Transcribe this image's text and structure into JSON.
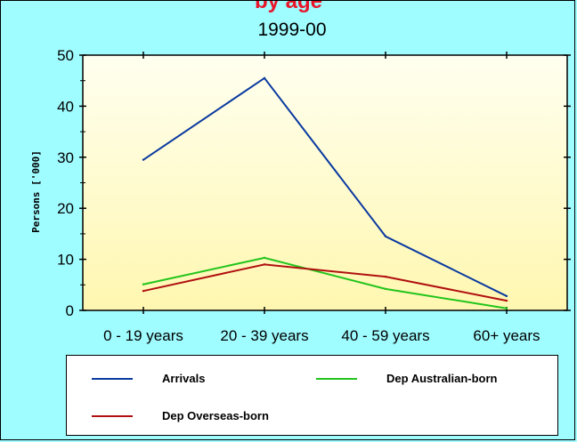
{
  "chart_data": {
    "type": "line",
    "title": "by age",
    "subtitle": "1999-00",
    "xlabel": "",
    "ylabel": "Persons ['000]",
    "categories": [
      "0 - 19 years",
      "20 - 39 years",
      "40 - 59 years",
      "60+ years"
    ],
    "ylim": [
      0,
      50
    ],
    "yticks": [
      0,
      10,
      20,
      30,
      40,
      50
    ],
    "grid": false,
    "legend_position": "bottom",
    "plot_background": [
      "#fffff0",
      "#fff7b0"
    ],
    "series": [
      {
        "name": "Arrivals",
        "color": "#0a3aa0",
        "values": [
          29.5,
          45.5,
          14.5,
          2.8
        ]
      },
      {
        "name": "Dep Australian-born",
        "color": "#22c41c",
        "values": [
          5.1,
          10.3,
          4.2,
          0.4
        ]
      },
      {
        "name": "Dep Overseas-born",
        "color": "#b01010",
        "values": [
          3.8,
          9.0,
          6.6,
          1.9
        ]
      }
    ]
  }
}
